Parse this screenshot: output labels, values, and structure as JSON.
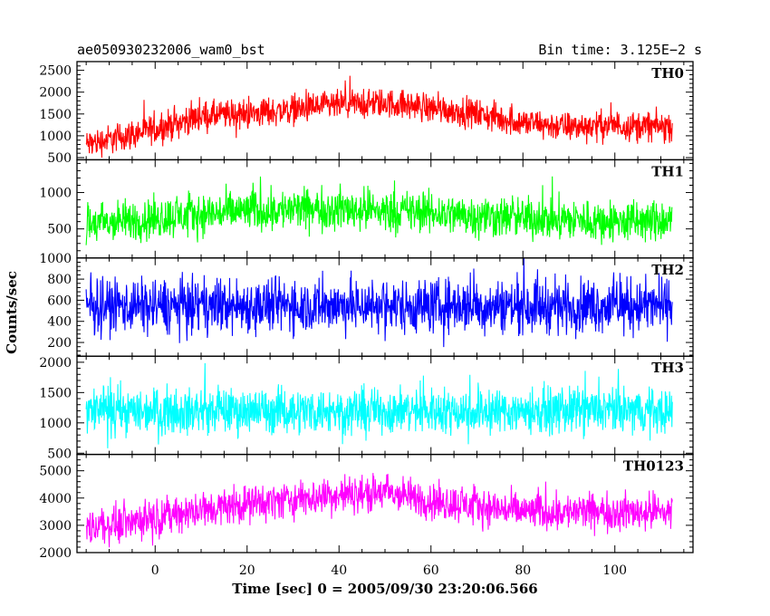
{
  "header": {
    "left": "ae050930232006_wam0_bst",
    "right": "Bin time: 3.125E−2 s"
  },
  "chart_data": {
    "type": "line",
    "xlabel": "Time [sec] 0 = 2005/09/30 23:20:06.566",
    "ylabel": "Counts/sec",
    "xlim": [
      -17,
      117
    ],
    "xticks": [
      0,
      20,
      40,
      60,
      80,
      100
    ],
    "x_range": [
      -15,
      112.5
    ],
    "grid": false,
    "panels": [
      {
        "name": "TH0",
        "color": "#ff0000",
        "ylim": [
          450,
          2700
        ],
        "yticks": [
          500,
          1000,
          1500,
          2000,
          2500
        ],
        "x": [
          -15,
          0,
          10,
          20,
          30,
          40,
          50,
          60,
          70,
          80,
          90,
          100,
          112.5
        ],
        "mean": [
          800,
          1150,
          1450,
          1500,
          1600,
          1700,
          1750,
          1650,
          1500,
          1300,
          1200,
          1250,
          1200
        ],
        "half_width": 450
      },
      {
        "name": "TH1",
        "color": "#00ff00",
        "ylim": [
          100,
          1450
        ],
        "yticks": [
          500,
          1000
        ],
        "x": [
          -15,
          0,
          20,
          40,
          60,
          80,
          100,
          112.5
        ],
        "mean": [
          550,
          650,
          750,
          780,
          720,
          650,
          600,
          600
        ],
        "half_width": 380
      },
      {
        "name": "TH2",
        "color": "#0000ff",
        "ylim": [
          70,
          1000
        ],
        "yticks": [
          200,
          400,
          600,
          800,
          1000
        ],
        "x": [
          -15,
          112.5
        ],
        "mean": [
          550,
          550
        ],
        "half_width": 340
      },
      {
        "name": "TH3",
        "color": "#00ffff",
        "ylim": [
          480,
          2100
        ],
        "yticks": [
          500,
          1000,
          1500,
          2000
        ],
        "x": [
          -15,
          112.5
        ],
        "mean": [
          1200,
          1200
        ],
        "half_width": 500
      },
      {
        "name": "TH0123",
        "color": "#ff00ff",
        "ylim": [
          2000,
          5600
        ],
        "yticks": [
          2000,
          3000,
          4000,
          5000
        ],
        "x": [
          -15,
          0,
          20,
          40,
          50,
          60,
          80,
          100,
          112.5
        ],
        "mean": [
          2900,
          3300,
          3800,
          4100,
          4200,
          3900,
          3500,
          3500,
          3500
        ],
        "half_width": 900
      }
    ]
  }
}
